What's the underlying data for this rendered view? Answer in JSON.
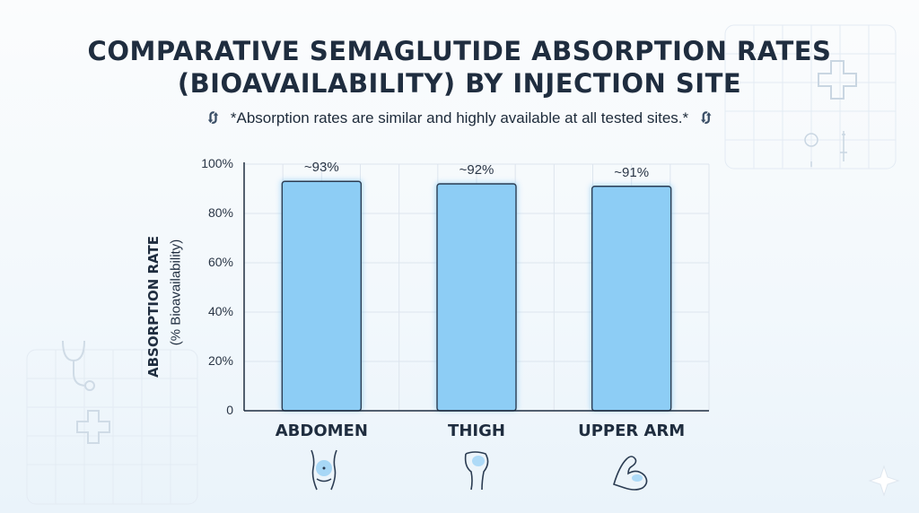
{
  "title_lines": [
    "COMPARATIVE SEMAGLUTIDE ABSORPTION RATES",
    "(BIOAVAILABILITY) BY INJECTION SITE"
  ],
  "subtitle": "*Absorption rates are similar and highly available at all tested sites.*",
  "icons": {
    "subtitle_left": "sync-icon",
    "subtitle_right": "sync-icon",
    "categories": [
      "abdomen-icon",
      "thigh-icon",
      "upper-arm-icon"
    ],
    "decorations": [
      "medical-cross-icon",
      "stethoscope-icon",
      "syringe-icon",
      "sparkle-icon"
    ]
  },
  "colors": {
    "bar_fill": "#8dcdf5",
    "bar_stroke": "#2b3c52",
    "grid": "#dde5ee",
    "axis": "#1f2d3f",
    "category_icon_glow": "#6fbff3"
  },
  "chart_data": {
    "type": "bar",
    "title": "COMPARATIVE SEMAGLUTIDE ABSORPTION RATES (BIOAVAILABILITY) BY INJECTION SITE",
    "subtitle": "*Absorption rates are similar and highly available at all tested sites.*",
    "categories": [
      "ABDOMEN",
      "THIGH",
      "UPPER ARM"
    ],
    "values": [
      93,
      92,
      91
    ],
    "data_labels": [
      "~93%",
      "~92%",
      "~91%"
    ],
    "ylabel": "ABSORPTION RATE",
    "ylabel_sub": "(% Bioavailability)",
    "xlabel": "",
    "ylim": [
      0,
      100
    ],
    "yticks": [
      0,
      20,
      40,
      60,
      80,
      100
    ],
    "ytick_labels": [
      "0",
      "20%",
      "40%",
      "60%",
      "80%",
      "100%"
    ],
    "grid": true,
    "legend": "none"
  }
}
